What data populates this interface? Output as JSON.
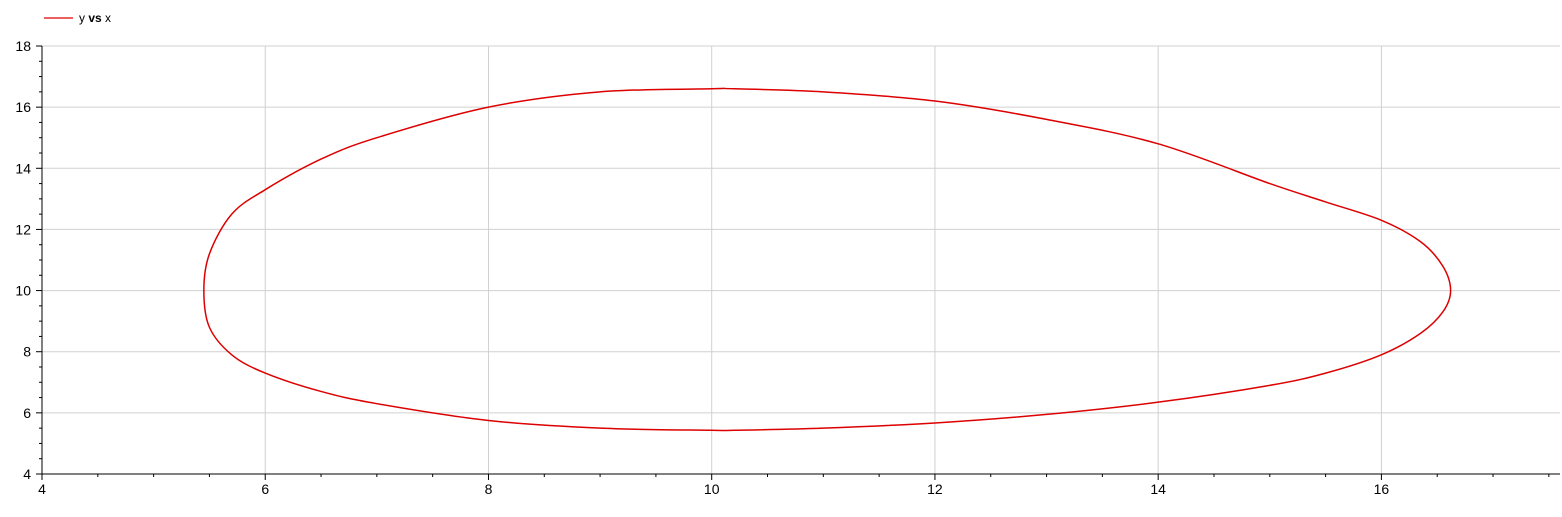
{
  "chart_data": {
    "type": "line",
    "title": "",
    "xlabel": "",
    "ylabel": "",
    "xlim": [
      4,
      17.6
    ],
    "ylim": [
      4,
      18
    ],
    "x_ticks": [
      4,
      6,
      8,
      10,
      12,
      14,
      16
    ],
    "y_ticks": [
      4,
      6,
      8,
      10,
      12,
      14,
      16,
      18
    ],
    "grid": true,
    "legend_position": "top-left",
    "legend": {
      "part1": "y ",
      "part2": "vs",
      "part3": " x"
    },
    "series": [
      {
        "name": "y vs x",
        "color": "#dd0000",
        "x": [
          16.62,
          16.55,
          16.35,
          16.0,
          15.5,
          15.0,
          14.0,
          13.0,
          12.0,
          11.0,
          10.2,
          10.0,
          9.0,
          8.0,
          7.0,
          6.5,
          6.0,
          5.7,
          5.5,
          5.45,
          5.5,
          5.7,
          6.0,
          6.5,
          7.0,
          8.0,
          9.0,
          10.0,
          10.2,
          11.0,
          12.0,
          13.0,
          14.0,
          15.0,
          15.5,
          16.0,
          16.35,
          16.55,
          16.62
        ],
        "y": [
          10.0,
          10.8,
          11.6,
          12.3,
          12.9,
          13.5,
          14.8,
          15.6,
          16.2,
          16.5,
          16.6,
          16.6,
          16.5,
          16.0,
          15.0,
          14.3,
          13.3,
          12.5,
          11.2,
          10.0,
          8.8,
          7.9,
          7.3,
          6.7,
          6.3,
          5.75,
          5.5,
          5.43,
          5.43,
          5.5,
          5.67,
          5.95,
          6.35,
          6.9,
          7.3,
          7.9,
          8.6,
          9.3,
          10.0
        ]
      }
    ]
  }
}
